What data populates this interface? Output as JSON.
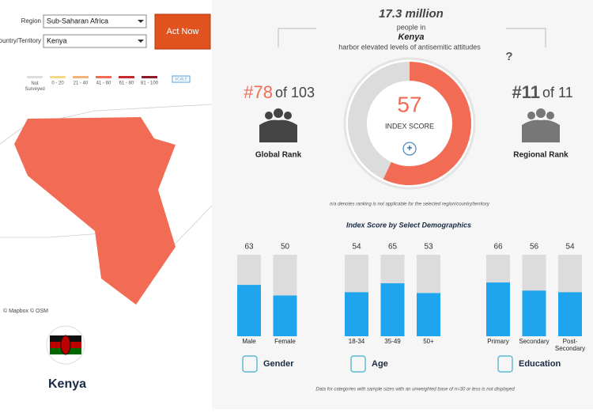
{
  "filters": {
    "region_label": "Region",
    "region_value": "Sub-Saharan Africa",
    "country_label": "Country/Territory",
    "country_value": "Kenya",
    "button": "Act Now"
  },
  "map": {
    "legend": [
      {
        "label": "Not Surveyed",
        "color": "#dddddd"
      },
      {
        "label": "0 - 20",
        "color": "#f5d98a"
      },
      {
        "label": "21 - 40",
        "color": "#f3b27a"
      },
      {
        "label": "41 - 60",
        "color": "#f26b54"
      },
      {
        "label": "61 - 80",
        "color": "#c62a2a"
      },
      {
        "label": "81 - 100",
        "color": "#8e1a2a"
      }
    ],
    "scale": "SCALE",
    "attribution": "© Mapbox © OSM",
    "country": "Kenya"
  },
  "headline": {
    "amount": "17.3 million",
    "line1": "people in",
    "country": "Kenya",
    "line2": "harbor elevated levels of antisemitic attitudes",
    "help": "?"
  },
  "global_rank": {
    "rank": "#78",
    "of": "of 103",
    "label": "Global Rank"
  },
  "regional_rank": {
    "rank": "#11",
    "of": "of 11",
    "label": "Regional Rank"
  },
  "index_score": {
    "value": 57,
    "label": "INDEX SCORE",
    "expand": "+",
    "lim": [
      0,
      100
    ],
    "color": "#f26b54"
  },
  "note": "n/a denotes ranking is not applicable for the selected region/country/territory",
  "demographics": {
    "title": "Index Score by Select Demographics",
    "ylim": [
      0,
      100
    ],
    "color": "#1ea5ee",
    "groups": [
      {
        "name": "Gender",
        "categories": [
          "Male",
          "Female"
        ],
        "values": [
          63,
          50
        ]
      },
      {
        "name": "Age",
        "categories": [
          "18-34",
          "35-49",
          "50+"
        ],
        "values": [
          54,
          65,
          53
        ]
      },
      {
        "name": "Education",
        "categories": [
          "Primary",
          "Secondary",
          "Post-Secondary"
        ],
        "values": [
          66,
          56,
          54
        ]
      }
    ]
  },
  "footnote": "Data for categories with sample sizes with an unweighted base of n=30 or less is not displayed"
}
